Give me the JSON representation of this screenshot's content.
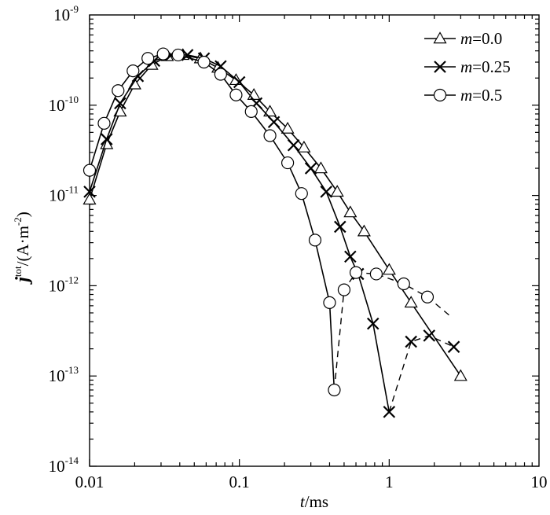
{
  "chart_data": {
    "type": "line",
    "xscale": "log",
    "yscale": "log",
    "xlim": [
      0.01,
      10
    ],
    "ylim": [
      1e-14,
      1e-09
    ],
    "grid": false,
    "legend_position": "top-right",
    "xlabel": {
      "italic": "t",
      "rest": "/ms"
    },
    "ylabel": {
      "italic": "j",
      "sup1": "tot",
      "mid": "/(A·m",
      "sup2": "-2",
      "end": ")"
    },
    "x_ticks": [
      {
        "value": 0.01,
        "label": "0.01"
      },
      {
        "value": 0.1,
        "label": "0.1"
      },
      {
        "value": 1,
        "label": "1"
      },
      {
        "value": 10,
        "label": "10"
      }
    ],
    "y_ticks": [
      {
        "value": 1e-14,
        "base": "10",
        "exp": "-14"
      },
      {
        "value": 1e-13,
        "base": "10",
        "exp": "-13"
      },
      {
        "value": 1e-12,
        "base": "10",
        "exp": "-12"
      },
      {
        "value": 1e-11,
        "base": "10",
        "exp": "-11"
      },
      {
        "value": 1e-10,
        "base": "10",
        "exp": "-10"
      },
      {
        "value": 1e-09,
        "base": "10",
        "exp": "-9"
      }
    ],
    "series": [
      {
        "name_italic": "m",
        "name_rest": "=0.0",
        "marker": "triangle",
        "points": [
          [
            0.01,
            9e-12
          ],
          [
            0.013,
            3.7e-11
          ],
          [
            0.016,
            8.5e-11
          ],
          [
            0.02,
            1.7e-10
          ],
          [
            0.026,
            2.8e-10
          ],
          [
            0.033,
            3.5e-10
          ],
          [
            0.042,
            3.6e-10
          ],
          [
            0.055,
            3.3e-10
          ],
          [
            0.072,
            2.6e-10
          ],
          [
            0.095,
            1.9e-10
          ],
          [
            0.125,
            1.3e-10
          ],
          [
            0.16,
            8.5e-11
          ],
          [
            0.21,
            5.5e-11
          ],
          [
            0.27,
            3.4e-11
          ],
          [
            0.35,
            2e-11
          ],
          [
            0.45,
            1.1e-11
          ],
          [
            0.55,
            6.5e-12
          ],
          [
            0.68,
            4e-12
          ],
          [
            1.0,
            1.5e-12
          ],
          [
            1.4,
            6.5e-13
          ],
          [
            3.0,
            1e-13
          ]
        ],
        "solid_segments": [
          [
            0,
            20
          ]
        ]
      },
      {
        "name_italic": "m",
        "name_rest": "=0.25",
        "marker": "x",
        "points": [
          [
            0.01,
            1.1e-11
          ],
          [
            0.013,
            4.2e-11
          ],
          [
            0.016,
            1.05e-10
          ],
          [
            0.021,
            2.1e-10
          ],
          [
            0.027,
            3.1e-10
          ],
          [
            0.035,
            3.6e-10
          ],
          [
            0.045,
            3.6e-10
          ],
          [
            0.058,
            3.3e-10
          ],
          [
            0.075,
            2.7e-10
          ],
          [
            0.1,
            1.8e-10
          ],
          [
            0.13,
            1.05e-10
          ],
          [
            0.17,
            6.5e-11
          ],
          [
            0.23,
            3.6e-11
          ],
          [
            0.3,
            2e-11
          ],
          [
            0.38,
            1.1e-11
          ],
          [
            0.47,
            4.5e-12
          ],
          [
            0.55,
            2.1e-12
          ],
          [
            0.62,
            1.35e-12
          ],
          [
            0.78,
            3.8e-13
          ],
          [
            1.0,
            4e-14
          ],
          [
            1.4,
            2.4e-13
          ],
          [
            1.85,
            2.8e-13
          ],
          [
            2.7,
            2.1e-13
          ]
        ],
        "solid_segments": [
          [
            0,
            19
          ]
        ],
        "dashed_segments": [
          [
            19,
            22
          ]
        ]
      },
      {
        "name_italic": "m",
        "name_rest": "=0.5",
        "marker": "circle",
        "points": [
          [
            0.01,
            1.9e-11
          ],
          [
            0.0125,
            6.3e-11
          ],
          [
            0.0155,
            1.45e-10
          ],
          [
            0.0195,
            2.4e-10
          ],
          [
            0.0245,
            3.3e-10
          ],
          [
            0.031,
            3.7e-10
          ],
          [
            0.039,
            3.6e-10
          ],
          [
            0.058,
            3e-10
          ],
          [
            0.075,
            2.2e-10
          ],
          [
            0.095,
            1.3e-10
          ],
          [
            0.12,
            8.5e-11
          ],
          [
            0.16,
            4.6e-11
          ],
          [
            0.21,
            2.3e-11
          ],
          [
            0.26,
            1.05e-11
          ],
          [
            0.32,
            3.2e-12
          ],
          [
            0.4,
            6.5e-13
          ],
          [
            0.43,
            7e-14
          ],
          [
            0.5,
            9e-13
          ],
          [
            0.6,
            1.4e-12
          ],
          [
            0.82,
            1.35e-12
          ],
          [
            1.25,
            1.05e-12
          ],
          [
            1.8,
            7.5e-13
          ],
          [
            2.6,
            4.5e-13
          ]
        ],
        "solid_segments": [
          [
            0,
            16
          ]
        ],
        "dashed_segments": [
          [
            16,
            22
          ]
        ],
        "marker_skip": [
          22
        ]
      }
    ]
  }
}
